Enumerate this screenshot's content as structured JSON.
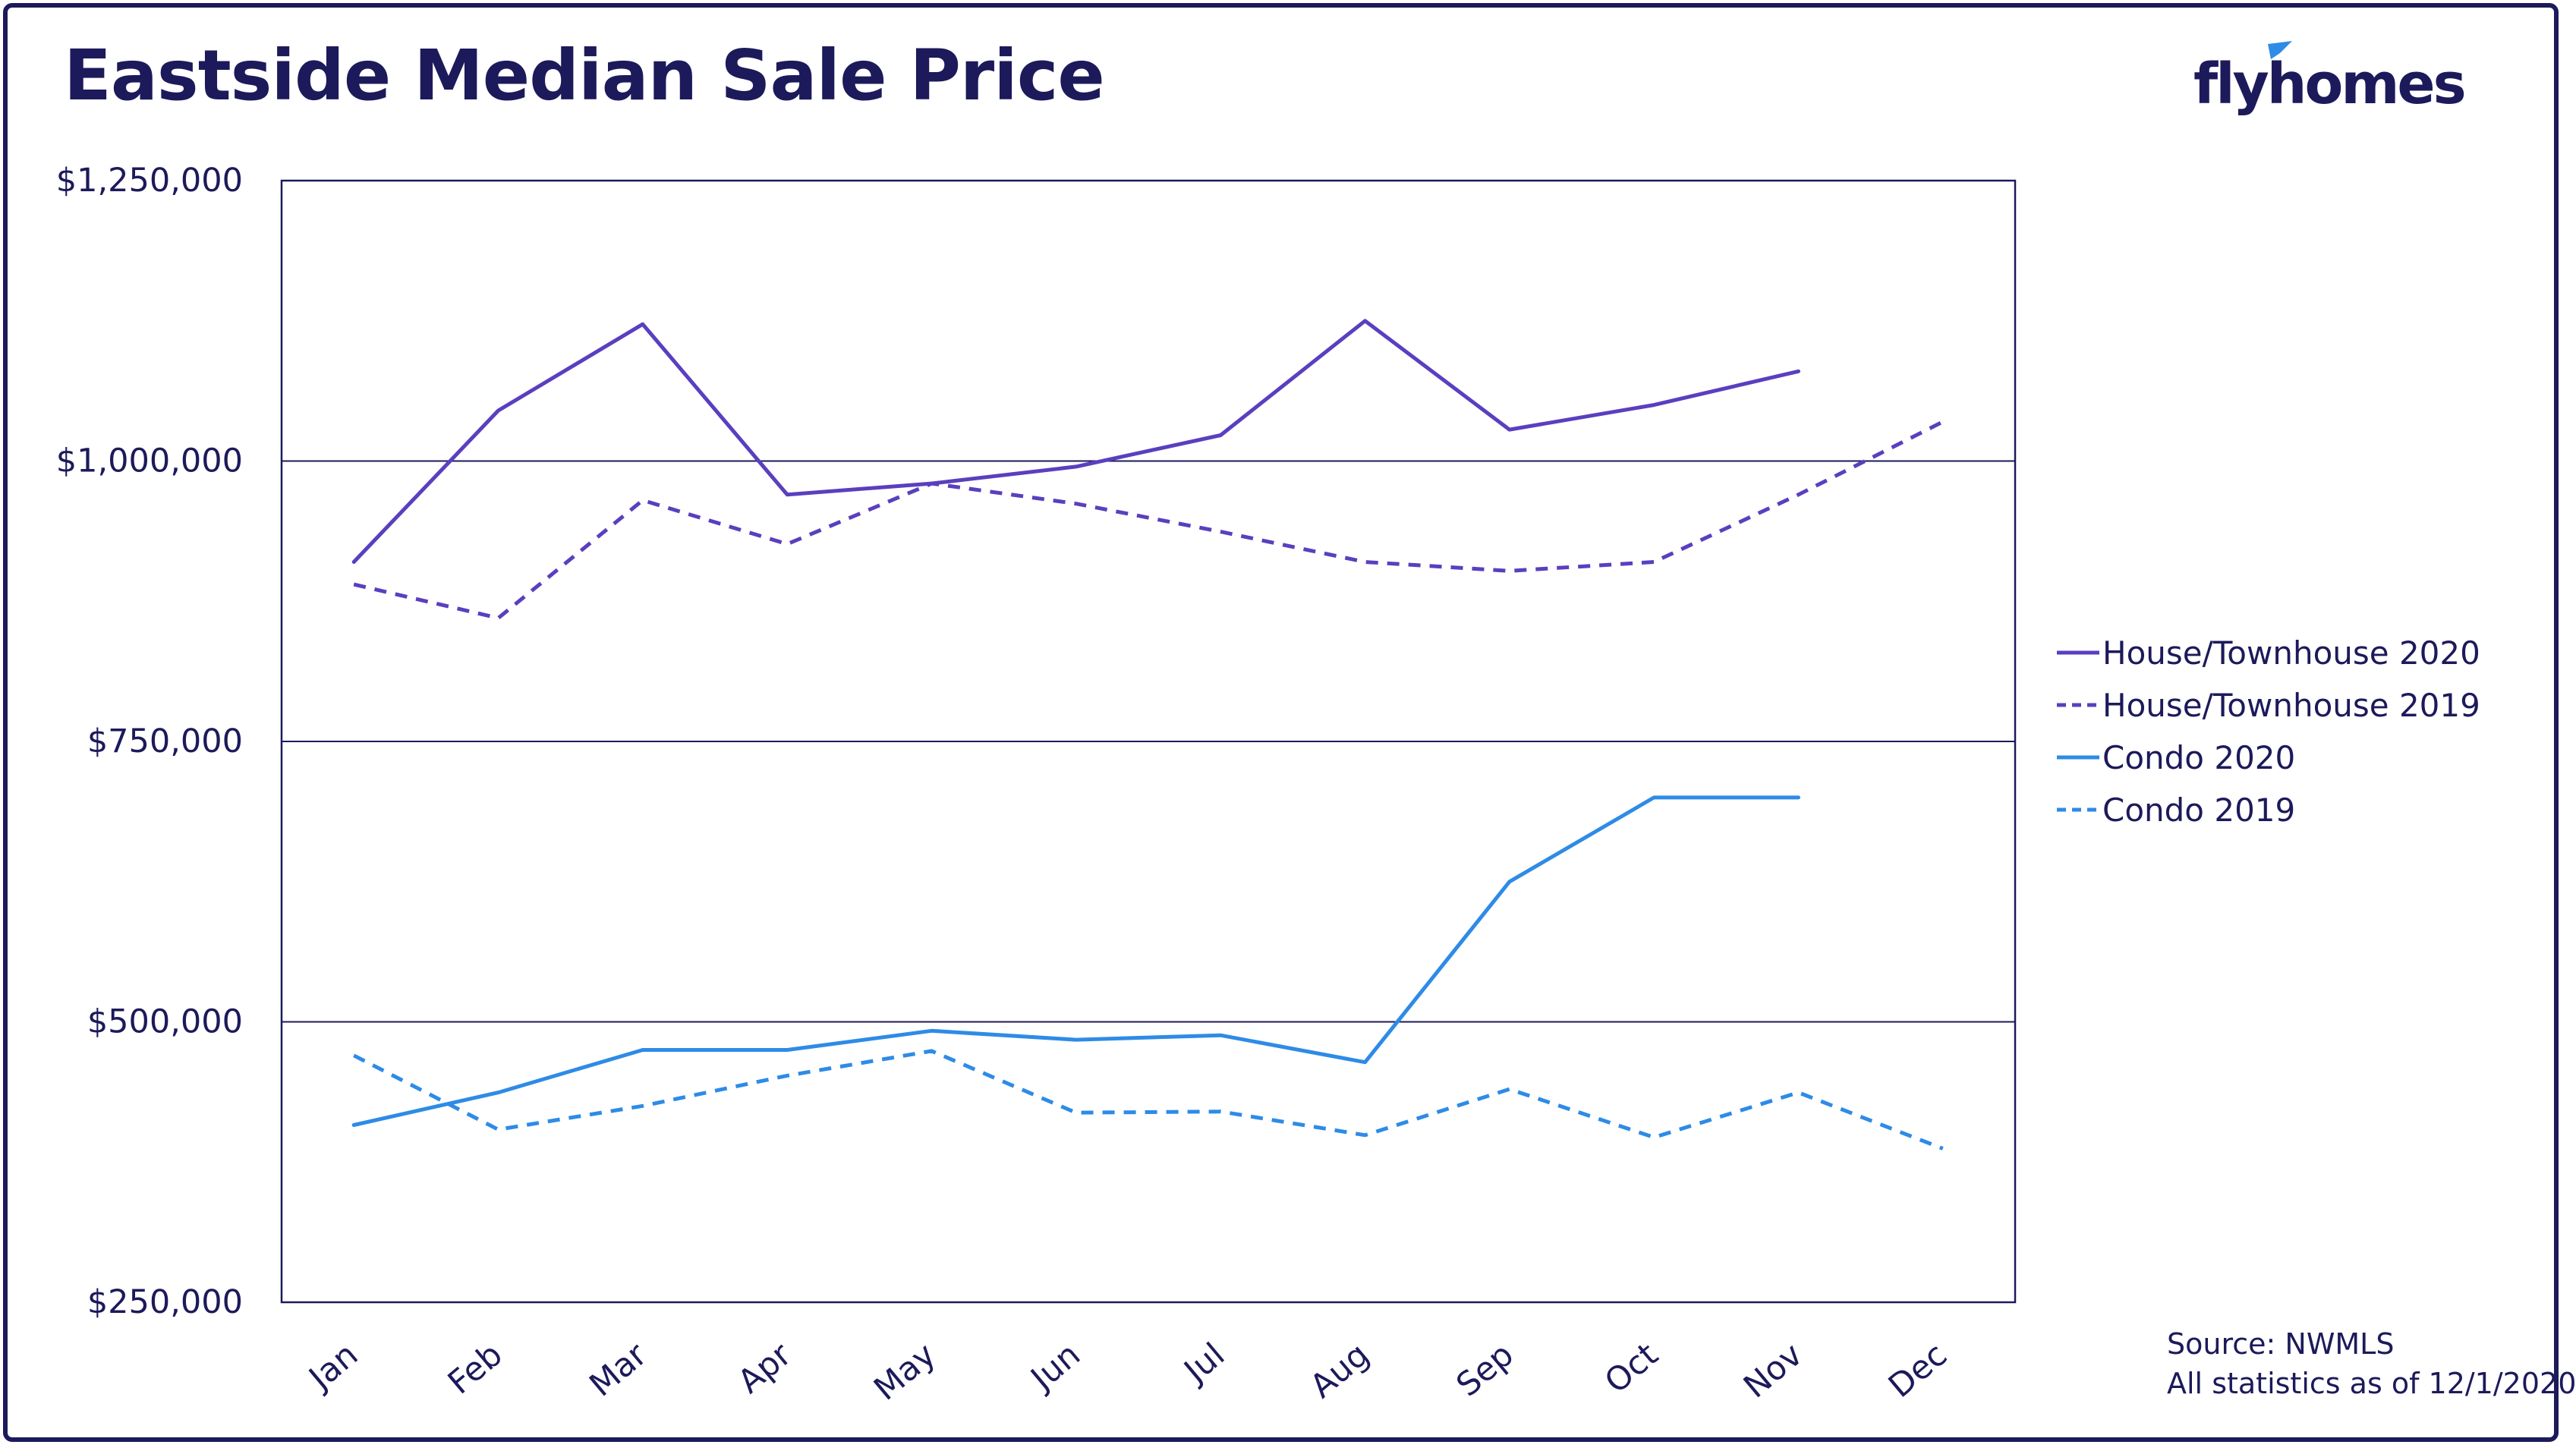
{
  "title": "Eastside Median Sale Price",
  "logo": {
    "text": "flyhomes",
    "accent_color": "#2e8be6"
  },
  "source": {
    "line1": "Source: NWMLS",
    "line2": "All statistics as of 12/1/2020"
  },
  "colors": {
    "navy": "#1c1a5a",
    "purple": "#5a3fbf",
    "blue": "#2e8be6",
    "frame": "#1c1a5a"
  },
  "chart_data": {
    "type": "line",
    "title": "Eastside Median Sale Price",
    "xlabel": "",
    "ylabel": "",
    "categories": [
      "Jan",
      "Feb",
      "Mar",
      "Apr",
      "May",
      "Jun",
      "Jul",
      "Aug",
      "Sep",
      "Oct",
      "Nov",
      "Dec"
    ],
    "ylim": [
      250000,
      1250000
    ],
    "yticks": [
      250000,
      500000,
      750000,
      1000000,
      1250000
    ],
    "ytick_labels": [
      "$250,000",
      "$500,000",
      "$750,000",
      "$1,000,000",
      "$1,250,000"
    ],
    "grid": "horizontal",
    "legend_position": "right",
    "series": [
      {
        "name": "House/Townhouse 2020",
        "color": "#5a3fbf",
        "dash": "solid",
        "values": [
          910000,
          1045000,
          1122000,
          970000,
          980000,
          995000,
          1023000,
          1125000,
          1028000,
          1050000,
          1080000,
          null
        ]
      },
      {
        "name": "House/Townhouse 2019",
        "color": "#5a3fbf",
        "dash": "dashed",
        "values": [
          890000,
          860000,
          965000,
          926000,
          980000,
          962000,
          937000,
          910000,
          902000,
          910000,
          970000,
          1035000
        ]
      },
      {
        "name": "Condo 2020",
        "color": "#2e8be6",
        "dash": "solid",
        "values": [
          408000,
          437000,
          475000,
          475000,
          492000,
          484000,
          488000,
          464000,
          625000,
          700000,
          700000,
          null
        ]
      },
      {
        "name": "Condo 2019",
        "color": "#2e8be6",
        "dash": "dashed",
        "values": [
          470000,
          404000,
          425000,
          452000,
          474000,
          419000,
          420000,
          399000,
          440000,
          397000,
          437000,
          387000
        ]
      }
    ]
  }
}
